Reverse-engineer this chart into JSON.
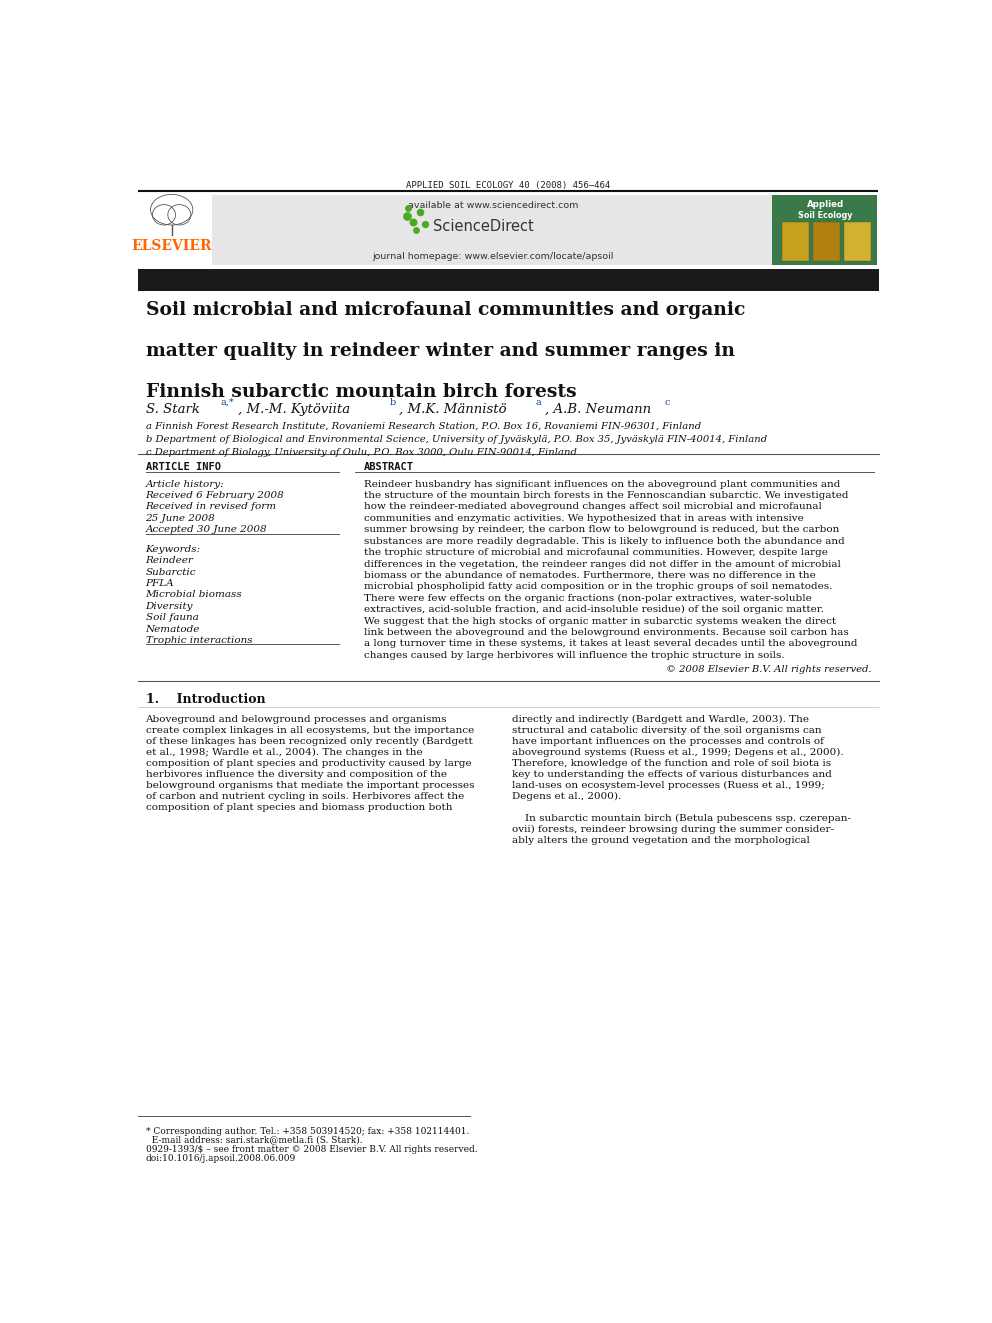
{
  "page_width": 9.92,
  "page_height": 13.23,
  "bg_color": "#ffffff",
  "journal_header": "APPLIED SOIL ECOLOGY 40 (2008) 456–464",
  "available_text": "available at www.sciencedirect.com",
  "journal_homepage": "journal homepage: www.elsevier.com/locate/apsoil",
  "elsevier_color": "#FF6600",
  "header_bg": "#e6e6e6",
  "journal_cover_bg": "#3a7a4a",
  "title_bar_color": "#1a1a1a",
  "article_title_line1": "Soil microbial and microfaunal communities and organic",
  "article_title_line2": "matter quality in reindeer winter and summer ranges in",
  "article_title_line3": "Finnish subarctic mountain birch forests",
  "affil_a": "a Finnish Forest Research Institute, Rovaniemi Research Station, P.O. Box 16, Rovaniemi FIN-96301, Finland",
  "affil_b": "b Department of Biological and Environmental Science, University of Jyväskylä, P.O. Box 35, Jyväskylä FIN-40014, Finland",
  "affil_c": "c Department of Biology, University of Oulu, P.O. Box 3000, Oulu FIN-90014, Finland",
  "article_info_header": "ARTICLE INFO",
  "abstract_header": "ABSTRACT",
  "article_history_label": "Article history:",
  "received1": "Received 6 February 2008",
  "received2": "Received in revised form",
  "received2b": "25 June 2008",
  "accepted": "Accepted 30 June 2008",
  "keywords_label": "Keywords:",
  "keywords": [
    "Reindeer",
    "Subarctic",
    "PFLA",
    "Microbial biomass",
    "Diversity",
    "Soil fauna",
    "Nematode",
    "Trophic interactions"
  ],
  "abstract_text": "Reindeer husbandry has significant influences on the aboveground plant communities and the structure of the mountain birch forests in the Fennoscandian subarctic. We investigated how the reindeer-mediated aboveground changes affect soil microbial and microfaunal communities and enzymatic activities. We hypothesized that in areas with intensive summer browsing by reindeer, the carbon flow to belowground is reduced, but the carbon substances are more readily degradable. This is likely to influence both the abundance and the trophic structure of microbial and microfaunal communities. However, despite large differences in the vegetation, the reindeer ranges did not differ in the amount of microbial biomass or the abundance of nematodes. Furthermore, there was no difference in the microbial phospholipid fatty acid composition or in the trophic groups of soil nematodes. There were few effects on the organic fractions (non-polar extractives, water-soluble extractives, acid-soluble fraction, and acid-insoluble residue) of the soil organic matter. We suggest that the high stocks of organic matter in subarctic systems weaken the direct link between the aboveground and the belowground environments. Because soil carbon has a long turnover time in these systems, it takes at least several decades until the aboveground changes caused by large herbivores will influence the trophic structure in soils.",
  "copyright": "© 2008 Elsevier B.V. All rights reserved.",
  "intro_header": "1.    Introduction",
  "intro_col1_lines": [
    "Aboveground and belowground processes and organisms",
    "create complex linkages in all ecosystems, but the importance",
    "of these linkages has been recognized only recently (Bardgett",
    "et al., 1998; Wardle et al., 2004). The changes in the",
    "composition of plant species and productivity caused by large",
    "herbivores influence the diversity and composition of the",
    "belowground organisms that mediate the important processes",
    "of carbon and nutrient cycling in soils. Herbivores affect the",
    "composition of plant species and biomass production both"
  ],
  "intro_col2_lines": [
    "directly and indirectly (Bardgett and Wardle, 2003). The",
    "structural and catabolic diversity of the soil organisms can",
    "have important influences on the processes and controls of",
    "aboveground systems (Ruess et al., 1999; Degens et al., 2000).",
    "Therefore, knowledge of the function and role of soil biota is",
    "key to understanding the effects of various disturbances and",
    "land-uses on ecosystem-level processes (Ruess et al., 1999;",
    "Degens et al., 2000).",
    "",
    "    In subarctic mountain birch (Betula pubescens ssp. czerepan-",
    "ovii) forests, reindeer browsing during the summer consider-",
    "ably alters the ground vegetation and the morphological"
  ],
  "footnote_lines": [
    "* Corresponding author. Tel.: +358 503914520; fax: +358 102114401.",
    "  E-mail address: sari.stark@metla.fi (S. Stark).",
    "0929-1393/$ – see front matter © 2008 Elsevier B.V. All rights reserved.",
    "doi:10.1016/j.apsoil.2008.06.009"
  ],
  "abstract_wrapped": [
    "Reindeer husbandry has significant influences on the aboveground plant communities and",
    "the structure of the mountain birch forests in the Fennoscandian subarctic. We investigated",
    "how the reindeer-mediated aboveground changes affect soil microbial and microfaunal",
    "communities and enzymatic activities. We hypothesized that in areas with intensive",
    "summer browsing by reindeer, the carbon flow to belowground is reduced, but the carbon",
    "substances are more readily degradable. This is likely to influence both the abundance and",
    "the trophic structure of microbial and microfaunal communities. However, despite large",
    "differences in the vegetation, the reindeer ranges did not differ in the amount of microbial",
    "biomass or the abundance of nematodes. Furthermore, there was no difference in the",
    "microbial phospholipid fatty acid composition or in the trophic groups of soil nematodes.",
    "There were few effects on the organic fractions (non-polar extractives, water-soluble",
    "extractives, acid-soluble fraction, and acid-insoluble residue) of the soil organic matter.",
    "We suggest that the high stocks of organic matter in subarctic systems weaken the direct",
    "link between the aboveground and the belowground environments. Because soil carbon has",
    "a long turnover time in these systems, it takes at least several decades until the aboveground",
    "changes caused by large herbivores will influence the trophic structure in soils."
  ]
}
